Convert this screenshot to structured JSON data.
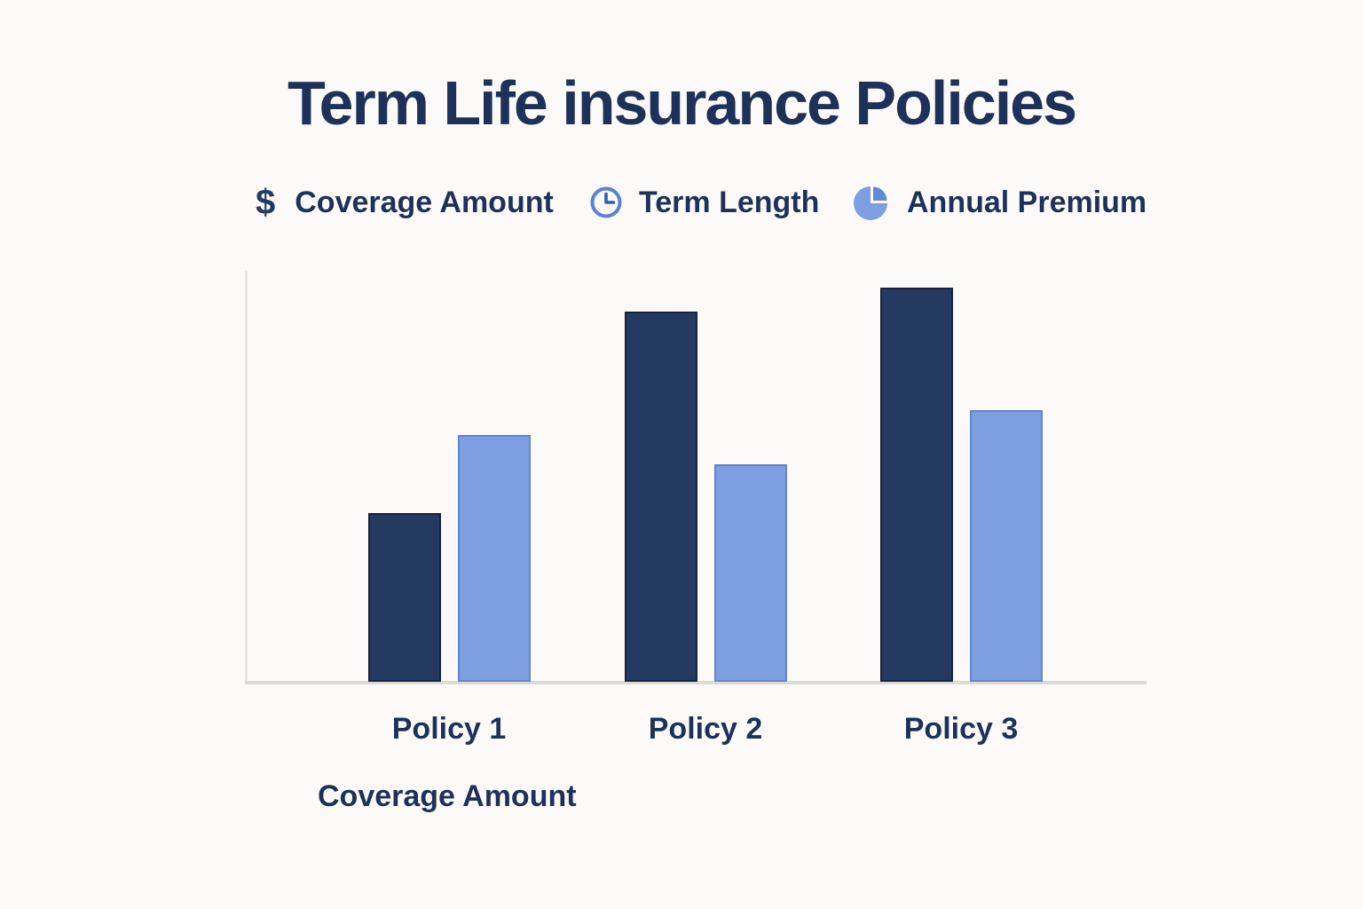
{
  "title": "Term Life insurance Policies",
  "legend": {
    "items": [
      {
        "label": "Coverage Amount",
        "icon": "dollar-icon",
        "symbol": "$"
      },
      {
        "label": "Term Length",
        "icon": "clock-icon"
      },
      {
        "label": "Annual Premium",
        "icon": "pie-chart-icon"
      }
    ]
  },
  "chart_data": {
    "type": "bar",
    "title": "Term Life insurance Policies",
    "categories": [
      "Policy 1",
      "Policy 2",
      "Policy 3"
    ],
    "series": [
      {
        "name": "Coverage Amount",
        "color": "#253a60",
        "border_color": "#15233f",
        "values": [
          41,
          90,
          96
        ]
      },
      {
        "name": "Annual Premium",
        "color": "#7d9ee0",
        "border_color": "#6285cf",
        "values": [
          60,
          53,
          66
        ]
      }
    ],
    "xlabel": "Coverage Amount",
    "ylabel": "",
    "ylim": [
      0,
      100
    ],
    "grid": false,
    "legend_position": "top",
    "note": "no numeric axis shown; values are relative bar heights in percent of plot height"
  },
  "colors": {
    "background": "#fbfaf8",
    "text": "#1e3158",
    "axis": "#dedbd4",
    "clock_icon": "#5b82d6",
    "pie_body": "#7d9ee0",
    "pie_wedge": "#6289d6"
  }
}
